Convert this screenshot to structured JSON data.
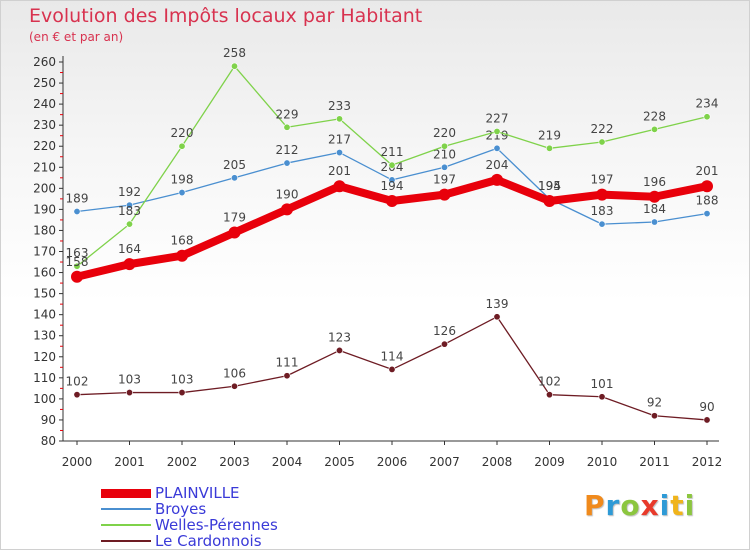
{
  "title": "Evolution des Impôts locaux par Habitant",
  "subtitle": "(en € et par an)",
  "logo": {
    "text": "Proxiti",
    "colors": [
      "#f08a1c",
      "#2e9ad6",
      "#8cc63f",
      "#e83a2b",
      "#2e9ad6",
      "#f0b41c",
      "#8cc63f"
    ]
  },
  "chart_data": {
    "type": "line",
    "x": [
      "2000",
      "2001",
      "2002",
      "2003",
      "2004",
      "2005",
      "2006",
      "2007",
      "2008",
      "2009",
      "2010",
      "2011",
      "2012"
    ],
    "ylim": [
      80,
      260
    ],
    "ytick_step": 10,
    "grid": false,
    "legend_position": "bottom-left",
    "series": [
      {
        "name": "PLAINVILLE",
        "color": "#e8000b",
        "highlight": true,
        "values": [
          158,
          164,
          168,
          179,
          190,
          201,
          194,
          197,
          204,
          194,
          197,
          196,
          201
        ]
      },
      {
        "name": "Broyes",
        "color": "#4a8fd0",
        "values": [
          189,
          192,
          198,
          205,
          212,
          217,
          204,
          210,
          219,
          195,
          183,
          184,
          188
        ]
      },
      {
        "name": "Welles-Pérennes",
        "color": "#7fd24a",
        "values": [
          163,
          183,
          220,
          258,
          229,
          233,
          211,
          220,
          227,
          219,
          222,
          228,
          234
        ]
      },
      {
        "name": "Le Cardonnois",
        "color": "#6e1c24",
        "values": [
          102,
          103,
          103,
          106,
          111,
          123,
          114,
          126,
          139,
          102,
          101,
          92,
          90
        ]
      }
    ]
  }
}
